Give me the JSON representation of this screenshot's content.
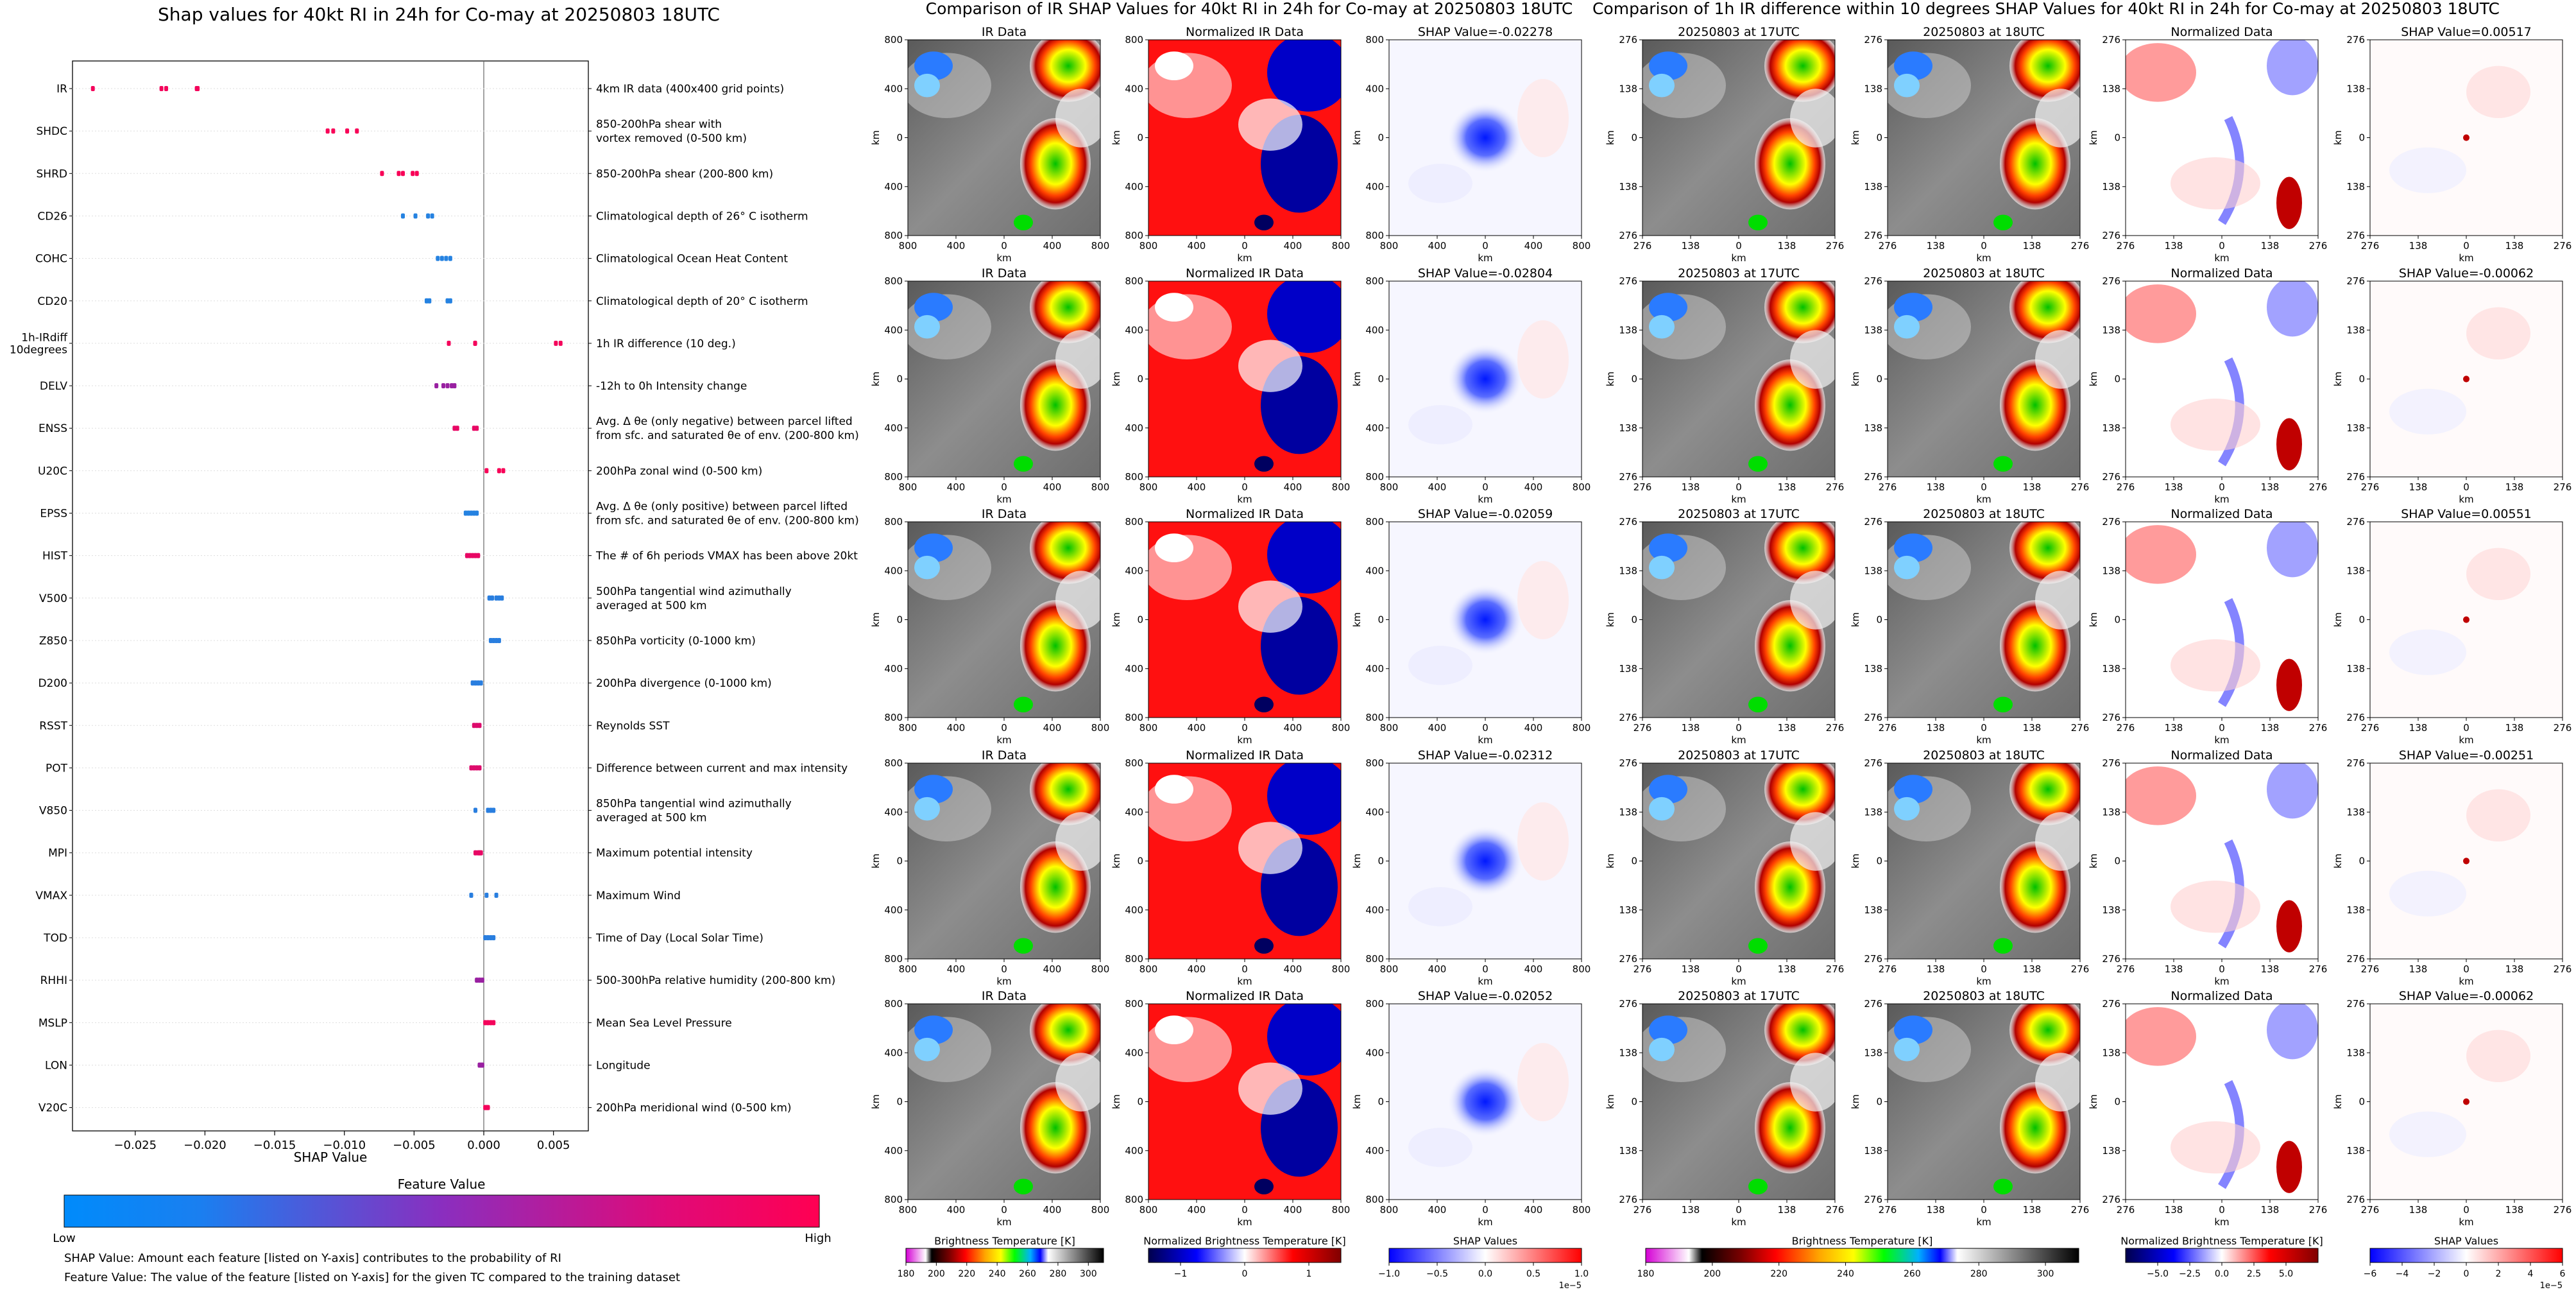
{
  "beeswarm": {
    "title": "Shap values for 40kt RI in 24h for Co-may at 20250803 18UTC",
    "xlabel": "SHAP Value",
    "colorbar_title": "Feature Value",
    "colorbar_low": "Low",
    "colorbar_high": "High",
    "note1": "SHAP Value: Amount each feature [listed on Y-axis] contributes to the probability of RI",
    "note2": "Feature Value: The value of the feature [listed on Y-axis] for the given TC compared to the training dataset"
  },
  "panels": {
    "ir_title": "Comparison of IR SHAP Values for 40kt RI in 24h for Co-may at 20250803 18UTC",
    "diff_title": "Comparison of 1h IR difference within 10 degrees SHAP Values for 40kt RI in 24h for Co-may at 20250803 18UTC",
    "col_titles": [
      "IR Data",
      "Normalized IR Data",
      "20250803 at 17UTC",
      "20250803 at 18UTC",
      "Normalized Data"
    ],
    "ir_shap_titles": [
      "SHAP Value=-0.02278",
      "SHAP Value=-0.02804",
      "SHAP Value=-0.02059",
      "SHAP Value=-0.02312",
      "SHAP Value=-0.02052"
    ],
    "diff_shap_titles": [
      "SHAP Value=0.00517",
      "SHAP Value=-0.00062",
      "SHAP Value=0.00551",
      "SHAP Value=-0.00251",
      "SHAP Value=-0.00062"
    ],
    "axis_label": "km",
    "ir_ticks": [
      "800",
      "400",
      "0",
      "400",
      "800"
    ],
    "diff_ticks": [
      "276",
      "138",
      "0",
      "138",
      "276"
    ],
    "colorbars": [
      {
        "label": "Brightness Temperature [K]",
        "ticks": [
          "180",
          "200",
          "220",
          "240",
          "260",
          "280",
          "300"
        ],
        "min": 180,
        "max": 310
      },
      {
        "label": "Normalized Brightness Temperature [K]",
        "ticks": [
          "−1",
          "0",
          "1"
        ],
        "min": -1.5,
        "max": 1.5
      },
      {
        "label": "SHAP Values",
        "ticks": [
          "−1.0",
          "−0.5",
          "0.0",
          "0.5",
          "1.0"
        ],
        "min": -1,
        "max": 1,
        "offset": "1e−5"
      },
      {
        "label": "Brightness Temperature [K]",
        "ticks": [
          "180",
          "200",
          "220",
          "240",
          "260",
          "280",
          "300"
        ],
        "min": 180,
        "max": 310
      },
      {
        "label": "Normalized Brightness Temperature [K]",
        "ticks": [
          "−5.0",
          "−2.5",
          "0.0",
          "2.5",
          "5.0"
        ],
        "min": -7.5,
        "max": 7.5
      },
      {
        "label": "SHAP Values",
        "ticks": [
          "−6",
          "−4",
          "−2",
          "0",
          "2",
          "4",
          "6"
        ],
        "min": -6,
        "max": 6,
        "offset": "1e−5"
      }
    ]
  },
  "chart_data": [
    {
      "type": "scatter",
      "title": "Shap values for 40kt RI in 24h for Co-may at 20250803 18UTC",
      "xlabel": "SHAP Value",
      "xlim": [
        -0.0295,
        0.0075
      ],
      "xticks": [
        "−0.025",
        "−0.020",
        "−0.015",
        "−0.010",
        "−0.005",
        "0.000",
        "0.005"
      ],
      "xtick_values": [
        -0.025,
        -0.02,
        -0.015,
        -0.01,
        -0.005,
        0.0,
        0.005
      ],
      "color_scale": {
        "low": "#1e88e5",
        "mid": "#8e24aa",
        "high": "#ff0052"
      },
      "features": [
        {
          "name": "IR",
          "desc": "4km IR data (400x400 grid points)",
          "shap": [
            -0.02804,
            -0.02312,
            -0.02278,
            -0.02059,
            -0.02052
          ],
          "value": 0.95
        },
        {
          "name": "SHDC",
          "desc": "850-200hPa shear with\nvortex removed (0-500 km)",
          "shap": [
            -0.0112,
            -0.0108,
            -0.0098,
            -0.0091
          ],
          "value": 0.97
        },
        {
          "name": "SHRD",
          "desc": "850-200hPa shear (200-800 km)",
          "shap": [
            -0.0073,
            -0.0061,
            -0.0058,
            -0.0051,
            -0.0048
          ],
          "value": 0.97
        },
        {
          "name": "CD26",
          "desc": "Climatological depth of 26° C isotherm",
          "shap": [
            -0.0058,
            -0.0049,
            -0.004,
            -0.0037
          ],
          "value": 0.03
        },
        {
          "name": "COHC",
          "desc": "Climatological Ocean Heat Content",
          "shap": [
            -0.0033,
            -0.003,
            -0.0027,
            -0.0024
          ],
          "value": 0.03
        },
        {
          "name": "CD20",
          "desc": "Climatological depth of 20° C isotherm",
          "shap": [
            -0.0041,
            -0.0039,
            -0.0026,
            -0.0024
          ],
          "value": 0.03
        },
        {
          "name": "1h-IRdiff\n10degrees",
          "desc": "1h IR difference (10 deg.)",
          "shap": [
            -0.00251,
            -0.00062,
            -0.00062,
            0.00517,
            0.00551
          ],
          "value": 0.95
        },
        {
          "name": "DELV",
          "desc": "-12h to 0h Intensity change",
          "shap": [
            -0.0034,
            -0.0029,
            -0.0026,
            -0.0023,
            -0.0021
          ],
          "value": 0.55
        },
        {
          "name": "ENSS",
          "desc": "Avg. Δ θe (only negative) between parcel lifted\nfrom sfc. and saturated θe of env. (200-800 km)",
          "shap": [
            -0.0021,
            -0.0019,
            -0.0007,
            -0.0005
          ],
          "value": 0.9
        },
        {
          "name": "U20C",
          "desc": "200hPa zonal wind (0-500 km)",
          "shap": [
            0.0002,
            0.0011,
            0.0014
          ],
          "value": 0.97
        },
        {
          "name": "EPSS",
          "desc": "Avg. Δ θe (only positive) between parcel lifted\nfrom sfc. and saturated θe of env. (200-800 km)",
          "shap": [
            -0.0013,
            -0.0011,
            -0.0009,
            -0.0007,
            -0.0005
          ],
          "value": 0.03
        },
        {
          "name": "HIST",
          "desc": "The # of 6h periods VMAX has been above 20kt",
          "shap": [
            -0.0012,
            -0.001,
            -0.0008,
            -0.0006,
            -0.0004
          ],
          "value": 0.9
        },
        {
          "name": "V500",
          "desc": "500hPa tangential wind azimuthally\naveraged at 500 km",
          "shap": [
            0.0004,
            0.0006,
            0.0009,
            0.0011,
            0.0013
          ],
          "value": 0.05
        },
        {
          "name": "Z850",
          "desc": "850hPa vorticity (0-1000 km)",
          "shap": [
            0.0005,
            0.0007,
            0.0009,
            0.0011
          ],
          "value": 0.05
        },
        {
          "name": "D200",
          "desc": "200hPa divergence (0-1000 km)",
          "shap": [
            -0.0008,
            -0.0006,
            -0.0004,
            -0.0002
          ],
          "value": 0.05
        },
        {
          "name": "RSST",
          "desc": "Reynolds SST",
          "shap": [
            -0.0007,
            -0.0005,
            -0.0003
          ],
          "value": 0.85
        },
        {
          "name": "POT",
          "desc": "Difference between current and max intensity",
          "shap": [
            -0.0009,
            -0.0007,
            -0.0005,
            -0.0003
          ],
          "value": 0.85
        },
        {
          "name": "V850",
          "desc": "850hPa tangential wind azimuthally\naveraged at 500 km",
          "shap": [
            -0.0006,
            0.0003,
            0.0005,
            0.0007
          ],
          "value": 0.05
        },
        {
          "name": "MPI",
          "desc": "Maximum potential intensity",
          "shap": [
            -0.0006,
            -0.0004,
            -0.0003,
            -0.0002
          ],
          "value": 0.9
        },
        {
          "name": "VMAX",
          "desc": "Maximum Wind",
          "shap": [
            -0.0009,
            0.0002,
            0.0009
          ],
          "value": 0.05
        },
        {
          "name": "TOD",
          "desc": "Time of Day (Local Solar Time)",
          "shap": [
            0.0001,
            0.0003,
            0.0005,
            0.0007
          ],
          "value": 0.05
        },
        {
          "name": "RHHI",
          "desc": "500-300hPa relative humidity (200-800 km)",
          "shap": [
            -0.0005,
            -0.0003,
            -0.0001
          ],
          "value": 0.55
        },
        {
          "name": "MSLP",
          "desc": "Mean Sea Level Pressure",
          "shap": [
            0.0001,
            0.0003,
            0.0005,
            0.0007
          ],
          "value": 0.95
        },
        {
          "name": "LON",
          "desc": "Longitude",
          "shap": [
            -0.0003,
            -0.0002,
            -0.0001
          ],
          "value": 0.55
        },
        {
          "name": "V20C",
          "desc": "200hPa meridional wind (0-500 km)",
          "shap": [
            0.0001,
            0.0002,
            0.0003
          ],
          "value": 0.95
        }
      ]
    }
  ]
}
